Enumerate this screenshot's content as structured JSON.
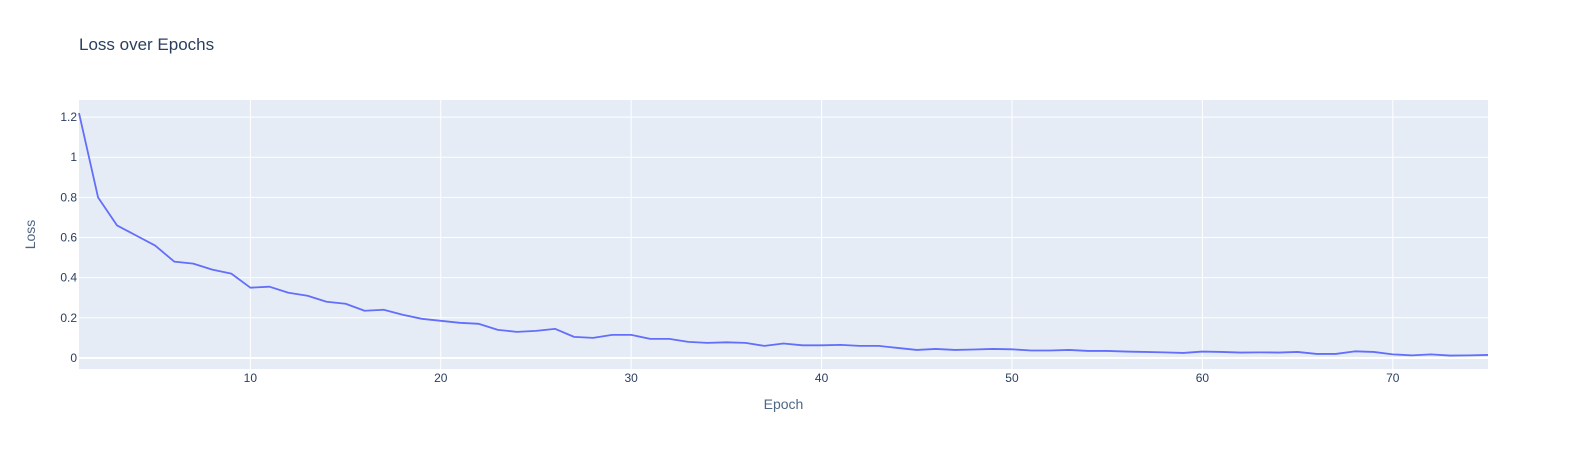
{
  "colors": {
    "plot_bg": "#E5ECF6",
    "grid": "#ffffff",
    "line": "#636EFA",
    "text": "#2a3f5f"
  },
  "chart_data": {
    "type": "line",
    "title": "Loss over Epochs",
    "xlabel": "Epoch",
    "ylabel": "Loss",
    "xlim": [
      1,
      75
    ],
    "ylim": [
      -0.055,
      1.285
    ],
    "xticks": [
      10,
      20,
      30,
      40,
      50,
      60,
      70
    ],
    "xtick_labels": [
      "10",
      "20",
      "30",
      "40",
      "50",
      "60",
      "70"
    ],
    "yticks": [
      0,
      0.2,
      0.4,
      0.6,
      0.8,
      1,
      1.2
    ],
    "ytick_labels": [
      "0",
      "0.2",
      "0.4",
      "0.6",
      "0.8",
      "1",
      "1.2"
    ],
    "grid": true,
    "legend": false,
    "series": [
      {
        "x": [
          1,
          2,
          3,
          4,
          5,
          6,
          7,
          8,
          9,
          10,
          11,
          12,
          13,
          14,
          15,
          16,
          17,
          18,
          19,
          20,
          21,
          22,
          23,
          24,
          25,
          26,
          27,
          28,
          29,
          30,
          31,
          32,
          33,
          34,
          35,
          36,
          37,
          38,
          39,
          40,
          41,
          42,
          43,
          44,
          45,
          46,
          47,
          48,
          49,
          50,
          51,
          52,
          53,
          54,
          55,
          56,
          57,
          58,
          59,
          60,
          61,
          62,
          63,
          64,
          65,
          66,
          67,
          68,
          69,
          70,
          71,
          72,
          73,
          74,
          75
        ],
        "values": [
          1.22,
          0.8,
          0.66,
          0.61,
          0.56,
          0.48,
          0.47,
          0.44,
          0.42,
          0.35,
          0.355,
          0.325,
          0.31,
          0.28,
          0.27,
          0.235,
          0.24,
          0.215,
          0.195,
          0.185,
          0.175,
          0.17,
          0.14,
          0.13,
          0.135,
          0.145,
          0.105,
          0.1,
          0.115,
          0.115,
          0.095,
          0.095,
          0.08,
          0.075,
          0.078,
          0.075,
          0.06,
          0.072,
          0.063,
          0.063,
          0.065,
          0.06,
          0.06,
          0.05,
          0.04,
          0.045,
          0.04,
          0.042,
          0.045,
          0.043,
          0.037,
          0.037,
          0.04,
          0.035,
          0.035,
          0.032,
          0.03,
          0.028,
          0.025,
          0.032,
          0.03,
          0.027,
          0.028,
          0.027,
          0.03,
          0.02,
          0.02,
          0.033,
          0.03,
          0.018,
          0.013,
          0.018,
          0.012,
          0.013,
          0.015
        ]
      }
    ]
  }
}
